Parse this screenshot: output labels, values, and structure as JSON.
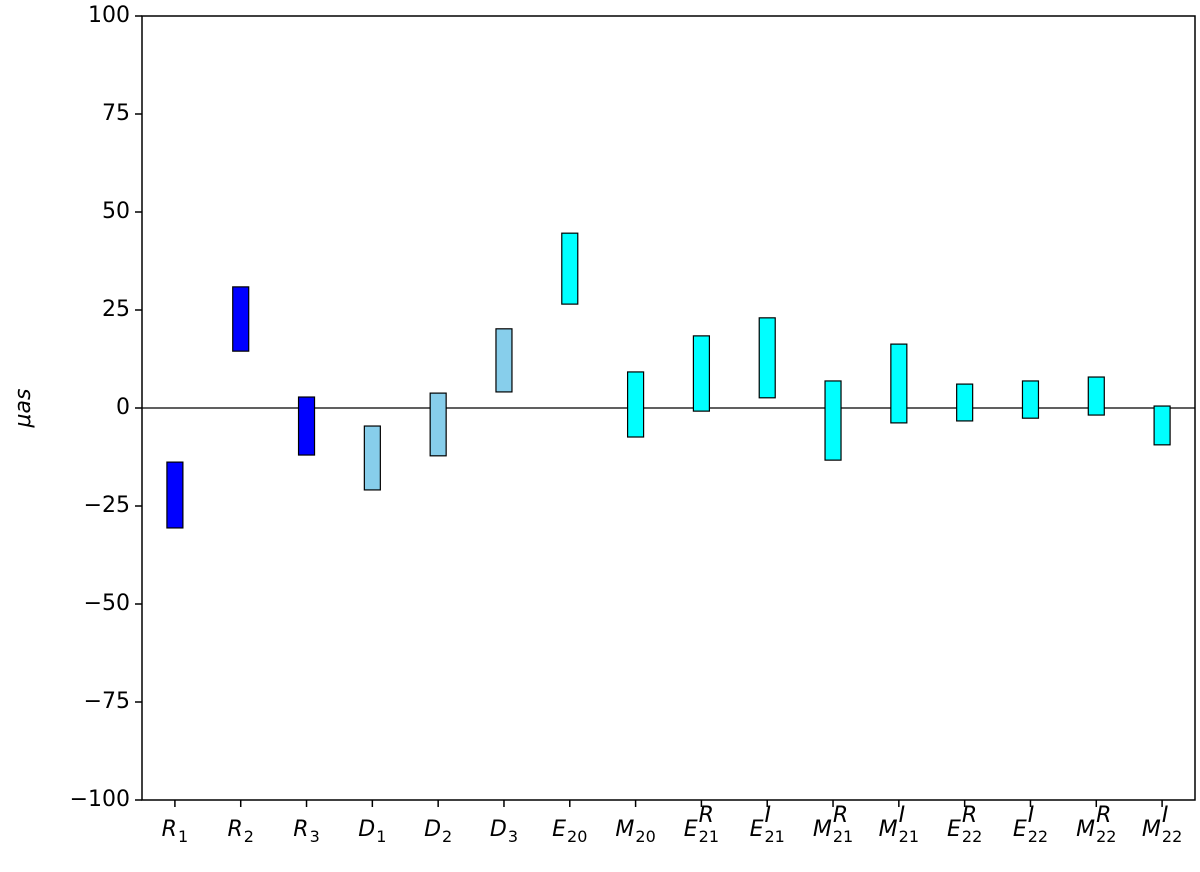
{
  "chart_data": {
    "type": "range_bar",
    "ylabel": "μas",
    "categories": [
      {
        "symbol": "R",
        "sub": "1"
      },
      {
        "symbol": "R",
        "sub": "2"
      },
      {
        "symbol": "R",
        "sub": "3"
      },
      {
        "symbol": "D",
        "sub": "1"
      },
      {
        "symbol": "D",
        "sub": "2"
      },
      {
        "symbol": "D",
        "sub": "3"
      },
      {
        "symbol": "E",
        "sub": "20"
      },
      {
        "symbol": "M",
        "sub": "20"
      },
      {
        "symbol": "E",
        "sub": "21",
        "sup": "R"
      },
      {
        "symbol": "E",
        "sub": "21",
        "sup": "I"
      },
      {
        "symbol": "M",
        "sub": "21",
        "sup": "R"
      },
      {
        "symbol": "M",
        "sub": "21",
        "sup": "I"
      },
      {
        "symbol": "E",
        "sub": "22",
        "sup": "R"
      },
      {
        "symbol": "E",
        "sub": "22",
        "sup": "I"
      },
      {
        "symbol": "M",
        "sub": "22",
        "sup": "R"
      },
      {
        "symbol": "M",
        "sub": "22",
        "sup": "I"
      }
    ],
    "lows": [
      -30.6,
      14.5,
      -12.0,
      -20.9,
      -12.2,
      4.1,
      26.5,
      -7.4,
      -0.8,
      2.6,
      -13.3,
      -3.8,
      -3.3,
      -2.6,
      -1.8,
      -9.4
    ],
    "highs": [
      -13.8,
      30.9,
      2.8,
      -4.6,
      3.8,
      20.2,
      44.6,
      9.2,
      18.4,
      23.0,
      6.9,
      16.3,
      6.1,
      6.9,
      7.9,
      0.5
    ],
    "colors": [
      "#0000ff",
      "#0000ff",
      "#0000ff",
      "#87ceeb",
      "#87ceeb",
      "#87ceeb",
      "#00ffff",
      "#00ffff",
      "#00ffff",
      "#00ffff",
      "#00ffff",
      "#00ffff",
      "#00ffff",
      "#00ffff",
      "#00ffff",
      "#00ffff"
    ],
    "edgecolor": "#000000",
    "hline": 0,
    "ylim": [
      -100,
      100
    ],
    "yticks": [
      {
        "value": -100,
        "label": "−100"
      },
      {
        "value": -75,
        "label": "−75"
      },
      {
        "value": -50,
        "label": "−50"
      },
      {
        "value": -25,
        "label": "−25"
      },
      0,
      25,
      50,
      75,
      100
    ]
  }
}
